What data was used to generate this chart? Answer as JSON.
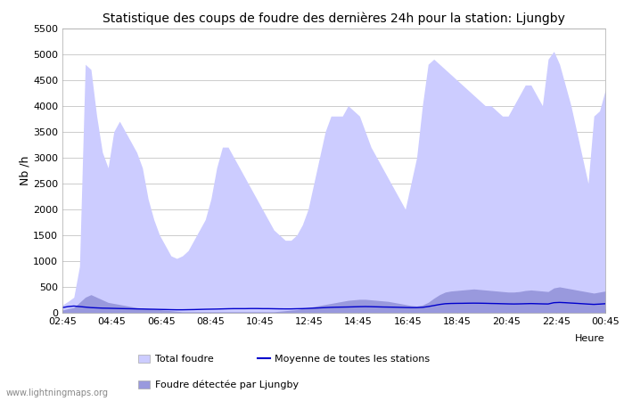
{
  "title": "Statistique des coups de foudre des dernières 24h pour la station: Ljungby",
  "ylabel": "Nb /h",
  "xlabel": "Heure",
  "ylim": [
    0,
    5500
  ],
  "yticks": [
    0,
    500,
    1000,
    1500,
    2000,
    2500,
    3000,
    3500,
    4000,
    4500,
    5000,
    5500
  ],
  "xtick_labels": [
    "02:45",
    "04:45",
    "06:45",
    "08:45",
    "10:45",
    "12:45",
    "14:45",
    "16:45",
    "18:45",
    "20:45",
    "22:45",
    "00:45"
  ],
  "watermark": "www.lightningmaps.org",
  "legend_entries": [
    "Total foudre",
    "Moyenne de toutes les stations",
    "Foudre détectée par Ljungby"
  ],
  "color_total": "#ccccff",
  "color_ljungby": "#9999dd",
  "color_moyenne": "#0000cc",
  "background_color": "#ffffff",
  "grid_color": "#cccccc",
  "title_fontsize": 10,
  "x_total": [
    0,
    1,
    2,
    3,
    4,
    5,
    6,
    7,
    8,
    9,
    10,
    11,
    12,
    13,
    14,
    15,
    16,
    17,
    18,
    19,
    20,
    21,
    22,
    23,
    24,
    25,
    26,
    27,
    28,
    29,
    30,
    31,
    32,
    33,
    34,
    35,
    36,
    37,
    38,
    39,
    40,
    41,
    42,
    43,
    44,
    45,
    46,
    47,
    48,
    49,
    50,
    51,
    52,
    53,
    54,
    55,
    56,
    57,
    58,
    59,
    60,
    61,
    62,
    63,
    64,
    65,
    66,
    67,
    68,
    69,
    70,
    71,
    72,
    73,
    74,
    75,
    76,
    77,
    78,
    79,
    80,
    81,
    82,
    83,
    84,
    85,
    86,
    87,
    88,
    89,
    90,
    91,
    92,
    93,
    94,
    95
  ],
  "y_total": [
    150,
    220,
    300,
    900,
    4800,
    4700,
    3800,
    3100,
    2800,
    3500,
    3700,
    3500,
    3300,
    3100,
    2800,
    2200,
    1800,
    1500,
    1300,
    1100,
    1050,
    1100,
    1200,
    1400,
    1600,
    1800,
    2200,
    2800,
    3200,
    3200,
    3000,
    2800,
    2600,
    2400,
    2200,
    2000,
    1800,
    1600,
    1500,
    1400,
    1400,
    1500,
    1700,
    2000,
    2500,
    3000,
    3500,
    3800,
    3800,
    3800,
    4000,
    3900,
    3800,
    3500,
    3200,
    3000,
    2800,
    2600,
    2400,
    2200,
    2000,
    2500,
    3000,
    4000,
    4800,
    4900,
    4800,
    4700,
    4600,
    4500,
    4400,
    4300,
    4200,
    4100,
    4000,
    4000,
    3900,
    3800,
    3800,
    4000,
    4200,
    4400,
    4400,
    4200,
    4000,
    4900,
    5050,
    4800,
    4400,
    4000,
    3500,
    3000,
    2500,
    3800,
    3900,
    4300
  ],
  "y_ljungby": [
    50,
    80,
    100,
    200,
    300,
    350,
    300,
    250,
    200,
    180,
    160,
    140,
    120,
    100,
    90,
    80,
    70,
    60,
    50,
    40,
    30,
    20,
    20,
    20,
    20,
    20,
    20,
    20,
    20,
    20,
    20,
    20,
    20,
    20,
    20,
    20,
    20,
    20,
    30,
    40,
    50,
    60,
    80,
    100,
    120,
    140,
    160,
    180,
    200,
    220,
    240,
    250,
    260,
    260,
    250,
    240,
    230,
    220,
    200,
    180,
    160,
    140,
    130,
    150,
    200,
    280,
    350,
    400,
    420,
    430,
    440,
    450,
    460,
    450,
    440,
    430,
    420,
    410,
    400,
    400,
    410,
    430,
    440,
    430,
    420,
    410,
    480,
    500,
    480,
    460,
    440,
    420,
    400,
    380,
    400,
    420
  ],
  "y_moyenne": [
    100,
    120,
    130,
    120,
    110,
    100,
    95,
    90,
    88,
    85,
    82,
    80,
    78,
    75,
    73,
    70,
    68,
    65,
    63,
    60,
    58,
    58,
    60,
    62,
    65,
    68,
    70,
    72,
    75,
    78,
    80,
    80,
    80,
    82,
    82,
    80,
    80,
    78,
    76,
    75,
    75,
    78,
    80,
    85,
    90,
    95,
    100,
    105,
    108,
    110,
    112,
    115,
    118,
    120,
    118,
    115,
    112,
    110,
    108,
    105,
    102,
    100,
    100,
    105,
    120,
    140,
    160,
    175,
    180,
    182,
    183,
    185,
    186,
    185,
    183,
    180,
    178,
    175,
    172,
    170,
    172,
    175,
    178,
    175,
    172,
    170,
    195,
    200,
    195,
    188,
    182,
    175,
    168,
    162,
    168,
    175
  ]
}
